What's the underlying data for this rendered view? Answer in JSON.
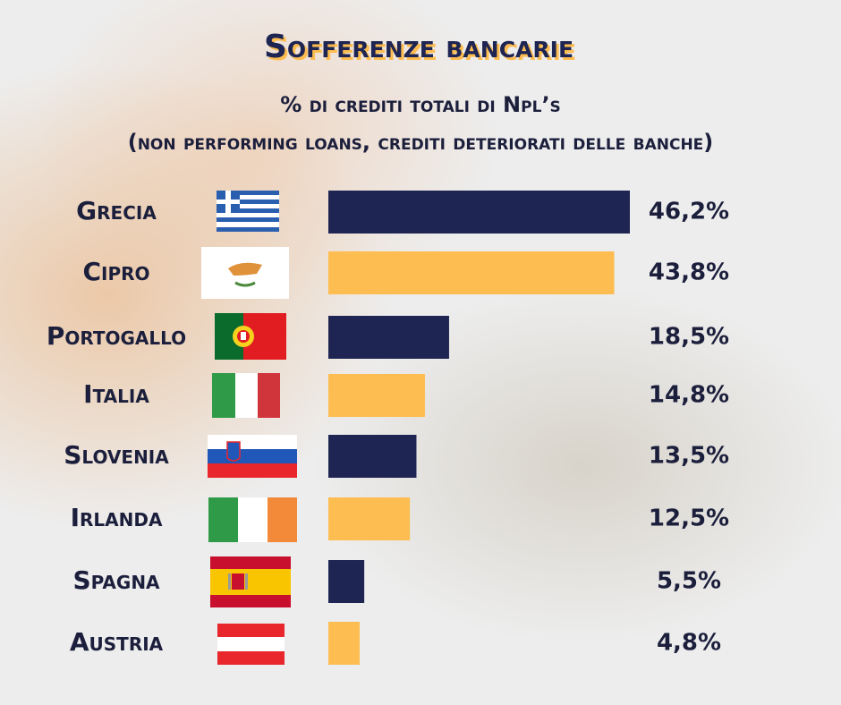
{
  "chart_data": {
    "type": "bar",
    "orientation": "horizontal",
    "title": "Sofferenze bancarie",
    "subtitle": [
      "% di crediti totali di Npl’s",
      "(non performing loans, crediti deteriorati delle banche)"
    ],
    "categories": [
      "Grecia",
      "Cipro",
      "Portogallo",
      "Italia",
      "Slovenia",
      "Irlanda",
      "Spagna",
      "Austria"
    ],
    "values": [
      46.2,
      43.8,
      18.5,
      14.8,
      13.5,
      12.5,
      5.5,
      4.8
    ],
    "value_labels": [
      "46,2%",
      "43,8%",
      "18,5%",
      "14,8%",
      "13,5%",
      "12,5%",
      "5,5%",
      "4,8%"
    ],
    "colors": [
      "#1e2552",
      "#fdbd50",
      "#1e2552",
      "#fdbd50",
      "#1e2552",
      "#fdbd50",
      "#1e2552",
      "#fdbd50"
    ]
  }
}
